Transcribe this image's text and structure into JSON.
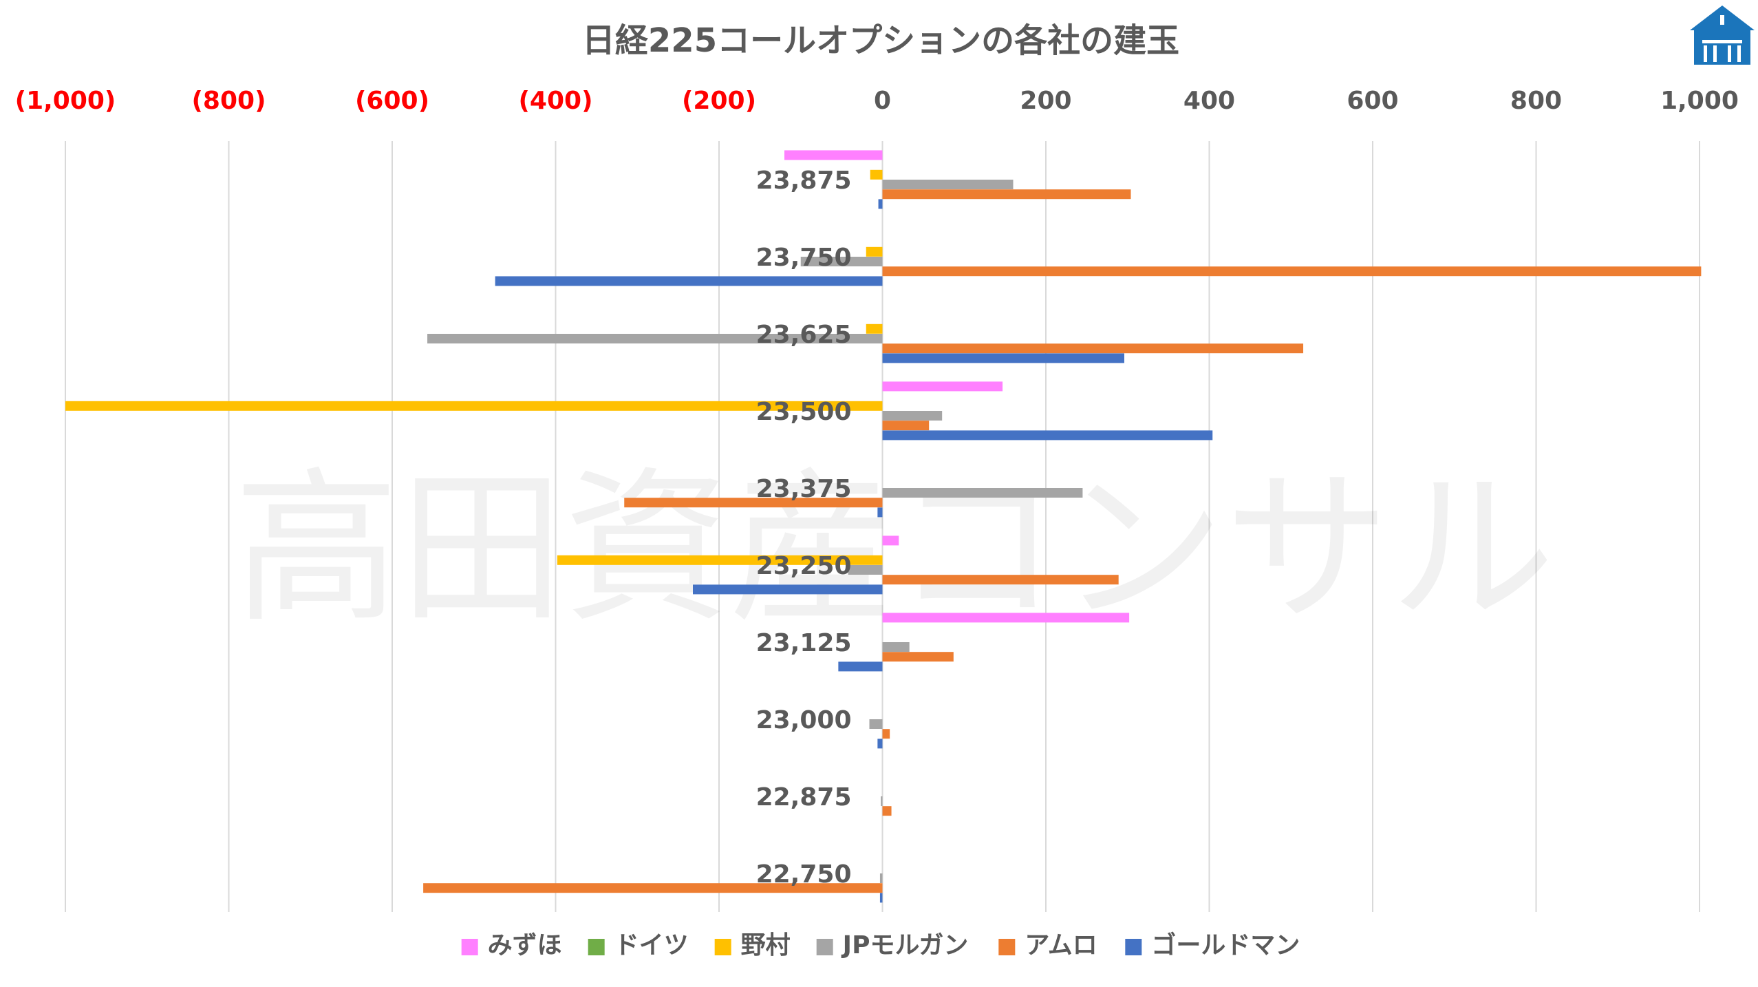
{
  "chart_data": {
    "type": "bar",
    "orientation": "horizontal",
    "title": "日経225コールオプションの各社の建玉",
    "xlim": [
      -1000,
      1000
    ],
    "x_ticks": [
      {
        "value": -1000,
        "label": "(1,000)"
      },
      {
        "value": -800,
        "label": "(800)"
      },
      {
        "value": -600,
        "label": "(600)"
      },
      {
        "value": -400,
        "label": "(400)"
      },
      {
        "value": -200,
        "label": "(200)"
      },
      {
        "value": 0,
        "label": "0"
      },
      {
        "value": 200,
        "label": "200"
      },
      {
        "value": 400,
        "label": "400"
      },
      {
        "value": 600,
        "label": "600"
      },
      {
        "value": 800,
        "label": "800"
      },
      {
        "value": 1000,
        "label": "1,000"
      }
    ],
    "grid": true,
    "legend_position": "bottom",
    "categories": [
      "23,875",
      "23,750",
      "23,625",
      "23,500",
      "23,375",
      "23,250",
      "23,125",
      "23,000",
      "22,875",
      "22,750"
    ],
    "series": [
      {
        "name": "みずほ",
        "color": "#ff80ff",
        "values": [
          -120,
          0,
          0,
          147,
          0,
          20,
          302,
          0,
          0,
          0
        ]
      },
      {
        "name": "ドイツ",
        "color": "#70ad47",
        "values": [
          0,
          0,
          0,
          0,
          0,
          0,
          0,
          0,
          0,
          0
        ]
      },
      {
        "name": "野村",
        "color": "#ffc000",
        "values": [
          -15,
          -20,
          -20,
          -1000,
          0,
          -398,
          0,
          0,
          0,
          0
        ]
      },
      {
        "name": "JPモルガン",
        "color": "#a5a5a5",
        "values": [
          160,
          -100,
          -557,
          73,
          245,
          -42,
          33,
          -16,
          -2,
          -3
        ]
      },
      {
        "name": "アムロ",
        "color": "#ed7d31",
        "values": [
          304,
          1002,
          515,
          57,
          -316,
          289,
          87,
          9,
          11,
          -562
        ]
      },
      {
        "name": "ゴールドマン",
        "color": "#4472c4",
        "values": [
          -5,
          -474,
          296,
          404,
          -6,
          -232,
          -54,
          -6,
          0,
          -3
        ]
      }
    ],
    "negative_label_color": "#ff0000",
    "positive_label_color": "#595959"
  },
  "watermark": "高田資産コンサル",
  "logo": {
    "name": "house-logo",
    "color": "#1b75bb"
  }
}
